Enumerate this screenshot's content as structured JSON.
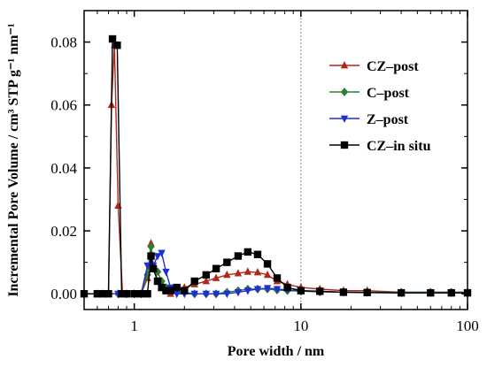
{
  "chart_data": {
    "type": "line",
    "xlabel": "Pore width / nm",
    "ylabel": "Incremental Pore Volume / cm³ STP g⁻¹ nm⁻¹",
    "xscale": "log",
    "xlim": [
      0.5,
      100
    ],
    "ylim": [
      -0.005,
      0.09
    ],
    "x_ticks": [
      1,
      10,
      100
    ],
    "x_tick_labels": [
      "1",
      "10",
      "100"
    ],
    "y_ticks": [
      0.0,
      0.02,
      0.04,
      0.06,
      0.08
    ],
    "y_tick_labels": [
      "0.00",
      "0.02",
      "0.04",
      "0.06",
      "0.08"
    ],
    "reference_line_x": 10,
    "legend_position": "top-right",
    "series": [
      {
        "name": "CZ–post",
        "color": "#b0281c",
        "marker": "triangle-up",
        "x": [
          0.5,
          0.6,
          0.65,
          0.7,
          0.73,
          0.76,
          0.8,
          0.85,
          0.9,
          1.0,
          1.1,
          1.2,
          1.26,
          1.3,
          1.38,
          1.46,
          1.55,
          1.65,
          1.8,
          2.0,
          2.3,
          2.7,
          3.1,
          3.6,
          4.2,
          4.8,
          5.5,
          6.3,
          7.2,
          8.3,
          10,
          13,
          18,
          25,
          40,
          60,
          80,
          100
        ],
        "y": [
          0.0,
          0.0,
          0.0,
          0.0,
          0.06,
          0.079,
          0.028,
          0.0,
          0.0,
          0.0,
          0.0,
          0.005,
          0.016,
          0.009,
          0.004,
          0.002,
          0.001,
          0.0,
          0.001,
          0.002,
          0.003,
          0.004,
          0.005,
          0.006,
          0.0065,
          0.007,
          0.0068,
          0.006,
          0.004,
          0.003,
          0.002,
          0.0015,
          0.001,
          0.001,
          0.0005,
          0.0005,
          0.0005,
          0.0005
        ]
      },
      {
        "name": "C–post",
        "color": "#2e7d32",
        "marker": "diamond",
        "x": [
          0.5,
          0.8,
          0.9,
          1.0,
          1.1,
          1.2,
          1.26,
          1.3,
          1.38,
          1.46,
          1.55,
          1.65,
          1.8,
          2.0,
          2.3,
          2.7,
          3.1,
          3.6,
          4.2,
          4.8,
          5.5,
          6.3,
          7.2,
          8.3,
          10,
          13,
          18,
          25,
          40,
          60,
          80,
          100
        ],
        "y": [
          0.0,
          0.0,
          0.0,
          0.0,
          0.0,
          0.006,
          0.015,
          0.008,
          0.007,
          0.004,
          0.002,
          0.001,
          0.0005,
          0.0005,
          0.0,
          0.0,
          0.0,
          0.0005,
          0.001,
          0.0015,
          0.0015,
          0.0015,
          0.0012,
          0.001,
          0.0008,
          0.0006,
          0.0005,
          0.0005,
          0.0005,
          0.0005,
          0.0005,
          0.0005
        ]
      },
      {
        "name": "Z–post",
        "color": "#1f2fd6",
        "marker": "triangle-down",
        "x": [
          0.5,
          0.8,
          0.9,
          1.0,
          1.1,
          1.2,
          1.26,
          1.3,
          1.38,
          1.46,
          1.55,
          1.65,
          1.8,
          2.0,
          2.3,
          2.7,
          3.1,
          3.6,
          4.2,
          4.8,
          5.5,
          6.3,
          7.2,
          8.3,
          10,
          13,
          18,
          25,
          40,
          60,
          80,
          100
        ],
        "y": [
          0.0,
          0.0,
          0.0,
          0.0,
          0.0,
          0.009,
          0.011,
          0.009,
          0.012,
          0.013,
          0.007,
          0.002,
          0.0,
          0.0,
          0.0,
          0.0,
          0.0,
          0.0,
          0.0005,
          0.001,
          0.0015,
          0.0018,
          0.0015,
          0.0012,
          0.001,
          0.0007,
          0.0005,
          0.0004,
          0.0003,
          0.0003,
          0.0003,
          0.0003
        ]
      },
      {
        "name": "CZ–in situ",
        "color": "#000000",
        "marker": "square",
        "x": [
          0.5,
          0.6,
          0.65,
          0.7,
          0.74,
          0.79,
          0.84,
          0.9,
          1.0,
          1.1,
          1.2,
          1.26,
          1.3,
          1.38,
          1.46,
          1.55,
          1.65,
          1.8,
          2.0,
          2.3,
          2.7,
          3.1,
          3.6,
          4.2,
          4.8,
          5.5,
          6.3,
          7.2,
          8.3,
          10,
          13,
          18,
          25,
          40,
          60,
          80,
          100
        ],
        "y": [
          0.0,
          0.0,
          0.0,
          0.0,
          0.081,
          0.079,
          0.0,
          0.0,
          0.0,
          0.0,
          0.0,
          0.012,
          0.008,
          0.004,
          0.002,
          0.001,
          0.001,
          0.002,
          0.001,
          0.004,
          0.006,
          0.008,
          0.01,
          0.012,
          0.0133,
          0.0125,
          0.0095,
          0.005,
          0.002,
          0.001,
          0.0008,
          0.0005,
          0.0004,
          0.0003,
          0.0003,
          0.0003,
          0.0003
        ]
      }
    ]
  }
}
